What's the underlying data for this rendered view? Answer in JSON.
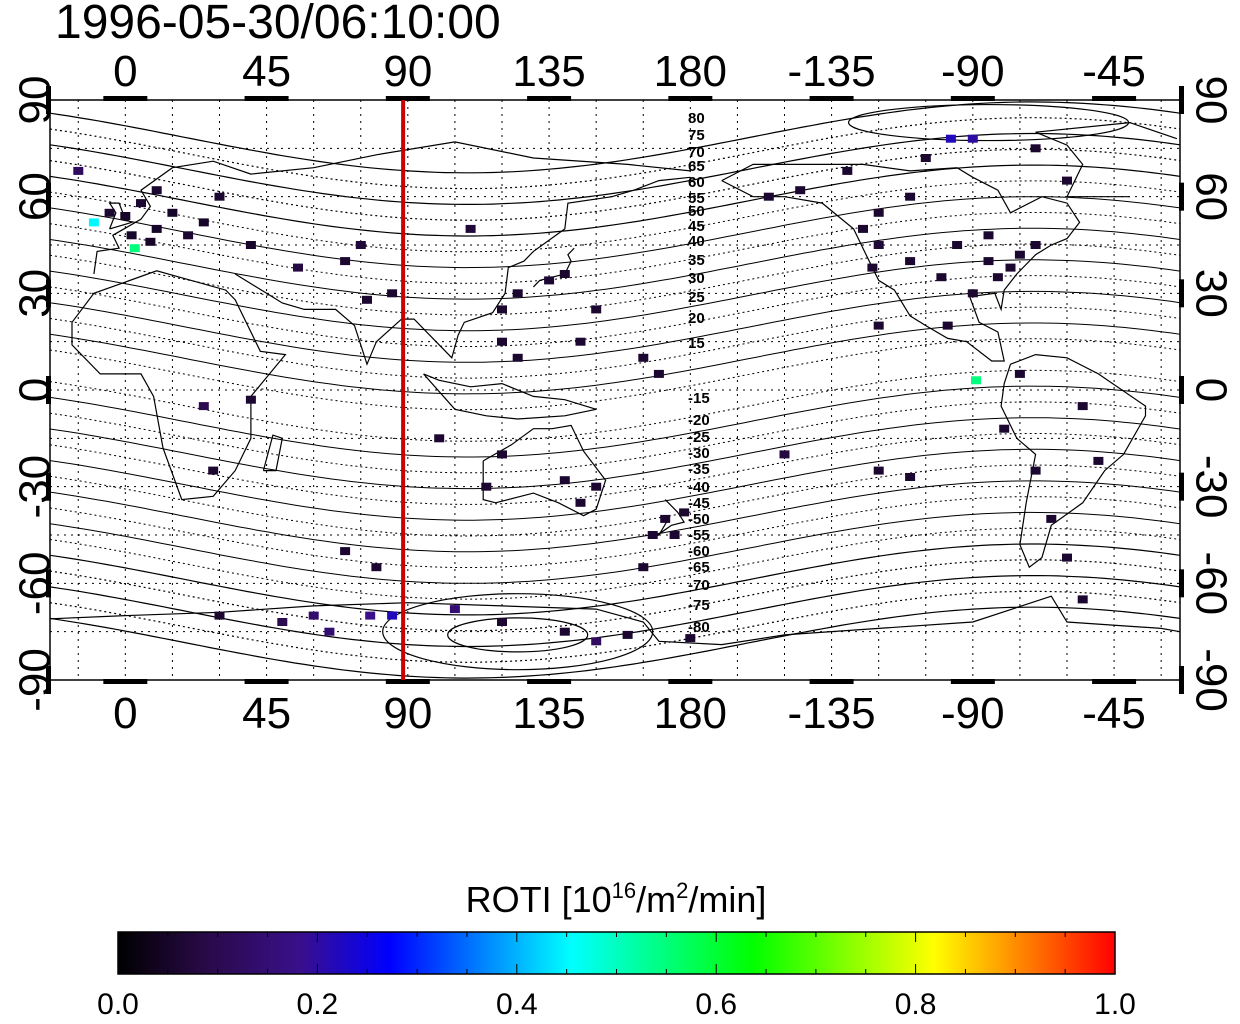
{
  "timestamp": "1996-05-30/06:10:00",
  "colorbar": {
    "label_main": "ROTI  [10",
    "label_sup1": "16",
    "label_mid": "/m",
    "label_sup2": "2",
    "label_end": "/min]",
    "ticks": [
      "0.0",
      "0.2",
      "0.4",
      "0.6",
      "0.8",
      "1.0"
    ],
    "range": [
      0.0,
      1.0
    ],
    "stops": [
      "#000000",
      "#2a0a4a",
      "#3a0f8a",
      "#0000ff",
      "#0080ff",
      "#00ffff",
      "#00ff80",
      "#00ff00",
      "#80ff00",
      "#ffff00",
      "#ff8000",
      "#ff0000"
    ]
  },
  "map": {
    "lon_labels_top": [
      "0",
      "45",
      "90",
      "135",
      "180",
      "-135",
      "-90",
      "-45"
    ],
    "lon_labels_bottom": [
      "0",
      "45",
      "90",
      "135",
      "180",
      "-135",
      "-90",
      "-45"
    ],
    "lat_labels_left": [
      "90",
      "60",
      "30",
      "0",
      "-30",
      "-60",
      "-90"
    ],
    "lat_labels_right": [
      "90",
      "60",
      "30",
      "0",
      "-30",
      "-60",
      "-90"
    ],
    "lon_ticks": [
      0,
      45,
      90,
      135,
      180,
      225,
      270,
      315
    ],
    "lat_ticks": [
      90,
      60,
      30,
      0,
      -30,
      -60,
      -90
    ],
    "lon_range": [
      -24,
      336
    ],
    "lat_range": [
      -90,
      90
    ],
    "marker_longitude": 88.5,
    "marker_color": "#cc0000",
    "contour_labels_north": [
      "80",
      "75",
      "70",
      "65",
      "60",
      "55",
      "50",
      "45",
      "40",
      "35",
      "30",
      "25",
      "20",
      "15"
    ],
    "contour_labels_south": [
      "-15",
      "-20",
      "-25",
      "-30",
      "-35",
      "-40",
      "-45",
      "-50",
      "-55",
      "-60",
      "-65",
      "-70",
      "-75",
      "-80"
    ]
  },
  "chart_data": {
    "type": "heatmap",
    "title": "1996-05-30/06:10:00",
    "colorbar_label": "ROTI  [10^16/m^2/min]",
    "value_range": [
      0.0,
      1.0
    ],
    "x_axis": "longitude",
    "y_axis": "latitude",
    "cells": [
      {
        "lon": 10,
        "lat": 62,
        "value": 0.06
      },
      {
        "lon": 5,
        "lat": 58,
        "value": 0.06
      },
      {
        "lon": 15,
        "lat": 55,
        "value": 0.05
      },
      {
        "lon": 10,
        "lat": 50,
        "value": 0.05
      },
      {
        "lon": 20,
        "lat": 48,
        "value": 0.06
      },
      {
        "lon": 2,
        "lat": 48,
        "value": 0.05
      },
      {
        "lon": 8,
        "lat": 46,
        "value": 0.05
      },
      {
        "lon": 25,
        "lat": 52,
        "value": 0.05
      },
      {
        "lon": 30,
        "lat": 60,
        "value": 0.06
      },
      {
        "lon": 0,
        "lat": 54,
        "value": 0.05
      },
      {
        "lon": -10,
        "lat": 52,
        "value": 0.45
      },
      {
        "lon": 3,
        "lat": 44,
        "value": 0.55
      },
      {
        "lon": -15,
        "lat": 68,
        "value": 0.12
      },
      {
        "lon": -5,
        "lat": 55,
        "value": 0.06
      },
      {
        "lon": 40,
        "lat": 45,
        "value": 0.05
      },
      {
        "lon": 75,
        "lat": 45,
        "value": 0.07
      },
      {
        "lon": 70,
        "lat": 40,
        "value": 0.06
      },
      {
        "lon": 55,
        "lat": 38,
        "value": 0.08
      },
      {
        "lon": 85,
        "lat": 30,
        "value": 0.06
      },
      {
        "lon": 77,
        "lat": 28,
        "value": 0.06
      },
      {
        "lon": 110,
        "lat": 50,
        "value": 0.07
      },
      {
        "lon": 125,
        "lat": 30,
        "value": 0.06
      },
      {
        "lon": 140,
        "lat": 36,
        "value": 0.06
      },
      {
        "lon": 135,
        "lat": 34,
        "value": 0.06
      },
      {
        "lon": 120,
        "lat": 25,
        "value": 0.06
      },
      {
        "lon": 150,
        "lat": 25,
        "value": 0.06
      },
      {
        "lon": 120,
        "lat": 15,
        "value": 0.06
      },
      {
        "lon": 125,
        "lat": 10,
        "value": 0.06
      },
      {
        "lon": 145,
        "lat": 15,
        "value": 0.06
      },
      {
        "lon": 165,
        "lat": 10,
        "value": 0.06
      },
      {
        "lon": 170,
        "lat": 5,
        "value": 0.06
      },
      {
        "lon": 120,
        "lat": -20,
        "value": 0.06
      },
      {
        "lon": 115,
        "lat": -30,
        "value": 0.06
      },
      {
        "lon": 140,
        "lat": -28,
        "value": 0.06
      },
      {
        "lon": 145,
        "lat": -35,
        "value": 0.06
      },
      {
        "lon": 150,
        "lat": -30,
        "value": 0.06
      },
      {
        "lon": 172,
        "lat": -40,
        "value": 0.06
      },
      {
        "lon": 175,
        "lat": -45,
        "value": 0.06
      },
      {
        "lon": 168,
        "lat": -45,
        "value": 0.06
      },
      {
        "lon": 178,
        "lat": -38,
        "value": 0.06
      },
      {
        "lon": 165,
        "lat": -55,
        "value": 0.06
      },
      {
        "lon": 80,
        "lat": -55,
        "value": 0.06
      },
      {
        "lon": 70,
        "lat": -50,
        "value": 0.06
      },
      {
        "lon": 25,
        "lat": -5,
        "value": 0.1
      },
      {
        "lon": 40,
        "lat": -3,
        "value": 0.06
      },
      {
        "lon": 28,
        "lat": -25,
        "value": 0.06
      },
      {
        "lon": 100,
        "lat": -15,
        "value": 0.06
      },
      {
        "lon": 85,
        "lat": -70,
        "value": 0.22
      },
      {
        "lon": 78,
        "lat": -70,
        "value": 0.18
      },
      {
        "lon": 105,
        "lat": -68,
        "value": 0.15
      },
      {
        "lon": 60,
        "lat": -70,
        "value": 0.14
      },
      {
        "lon": 65,
        "lat": -75,
        "value": 0.15
      },
      {
        "lon": 50,
        "lat": -72,
        "value": 0.1
      },
      {
        "lon": 30,
        "lat": -70,
        "value": 0.06
      },
      {
        "lon": 120,
        "lat": -72,
        "value": 0.06
      },
      {
        "lon": 140,
        "lat": -75,
        "value": 0.06
      },
      {
        "lon": 150,
        "lat": -78,
        "value": 0.12
      },
      {
        "lon": 160,
        "lat": -76,
        "value": 0.06
      },
      {
        "lon": 180,
        "lat": -77,
        "value": 0.06
      },
      {
        "lon": 210,
        "lat": -20,
        "value": 0.08
      },
      {
        "lon": 250,
        "lat": 60,
        "value": 0.06
      },
      {
        "lon": 240,
        "lat": 55,
        "value": 0.06
      },
      {
        "lon": 265,
        "lat": 45,
        "value": 0.06
      },
      {
        "lon": 275,
        "lat": 40,
        "value": 0.06
      },
      {
        "lon": 282,
        "lat": 38,
        "value": 0.06
      },
      {
        "lon": 285,
        "lat": 42,
        "value": 0.06
      },
      {
        "lon": 290,
        "lat": 45,
        "value": 0.06
      },
      {
        "lon": 278,
        "lat": 35,
        "value": 0.06
      },
      {
        "lon": 260,
        "lat": 35,
        "value": 0.06
      },
      {
        "lon": 250,
        "lat": 40,
        "value": 0.06
      },
      {
        "lon": 240,
        "lat": 45,
        "value": 0.07
      },
      {
        "lon": 238,
        "lat": 38,
        "value": 0.06
      },
      {
        "lon": 235,
        "lat": 50,
        "value": 0.06
      },
      {
        "lon": 270,
        "lat": 30,
        "value": 0.06
      },
      {
        "lon": 275,
        "lat": 48,
        "value": 0.06
      },
      {
        "lon": 263,
        "lat": 78,
        "value": 0.22
      },
      {
        "lon": 270,
        "lat": 78,
        "value": 0.2
      },
      {
        "lon": 255,
        "lat": 72,
        "value": 0.06
      },
      {
        "lon": 230,
        "lat": 68,
        "value": 0.06
      },
      {
        "lon": 215,
        "lat": 62,
        "value": 0.06
      },
      {
        "lon": 205,
        "lat": 60,
        "value": 0.06
      },
      {
        "lon": 290,
        "lat": 75,
        "value": 0.06
      },
      {
        "lon": 300,
        "lat": 65,
        "value": 0.06
      },
      {
        "lon": 240,
        "lat": 20,
        "value": 0.06
      },
      {
        "lon": 262,
        "lat": 20,
        "value": 0.06
      },
      {
        "lon": 271,
        "lat": 3,
        "value": 0.55
      },
      {
        "lon": 285,
        "lat": 5,
        "value": 0.06
      },
      {
        "lon": 280,
        "lat": -12,
        "value": 0.06
      },
      {
        "lon": 290,
        "lat": -25,
        "value": 0.06
      },
      {
        "lon": 305,
        "lat": -5,
        "value": 0.06
      },
      {
        "lon": 310,
        "lat": -22,
        "value": 0.06
      },
      {
        "lon": 295,
        "lat": -40,
        "value": 0.06
      },
      {
        "lon": 300,
        "lat": -52,
        "value": 0.06
      },
      {
        "lon": 305,
        "lat": -65,
        "value": 0.06
      },
      {
        "lon": 250,
        "lat": -27,
        "value": 0.06
      },
      {
        "lon": 240,
        "lat": -25,
        "value": 0.06
      }
    ]
  }
}
